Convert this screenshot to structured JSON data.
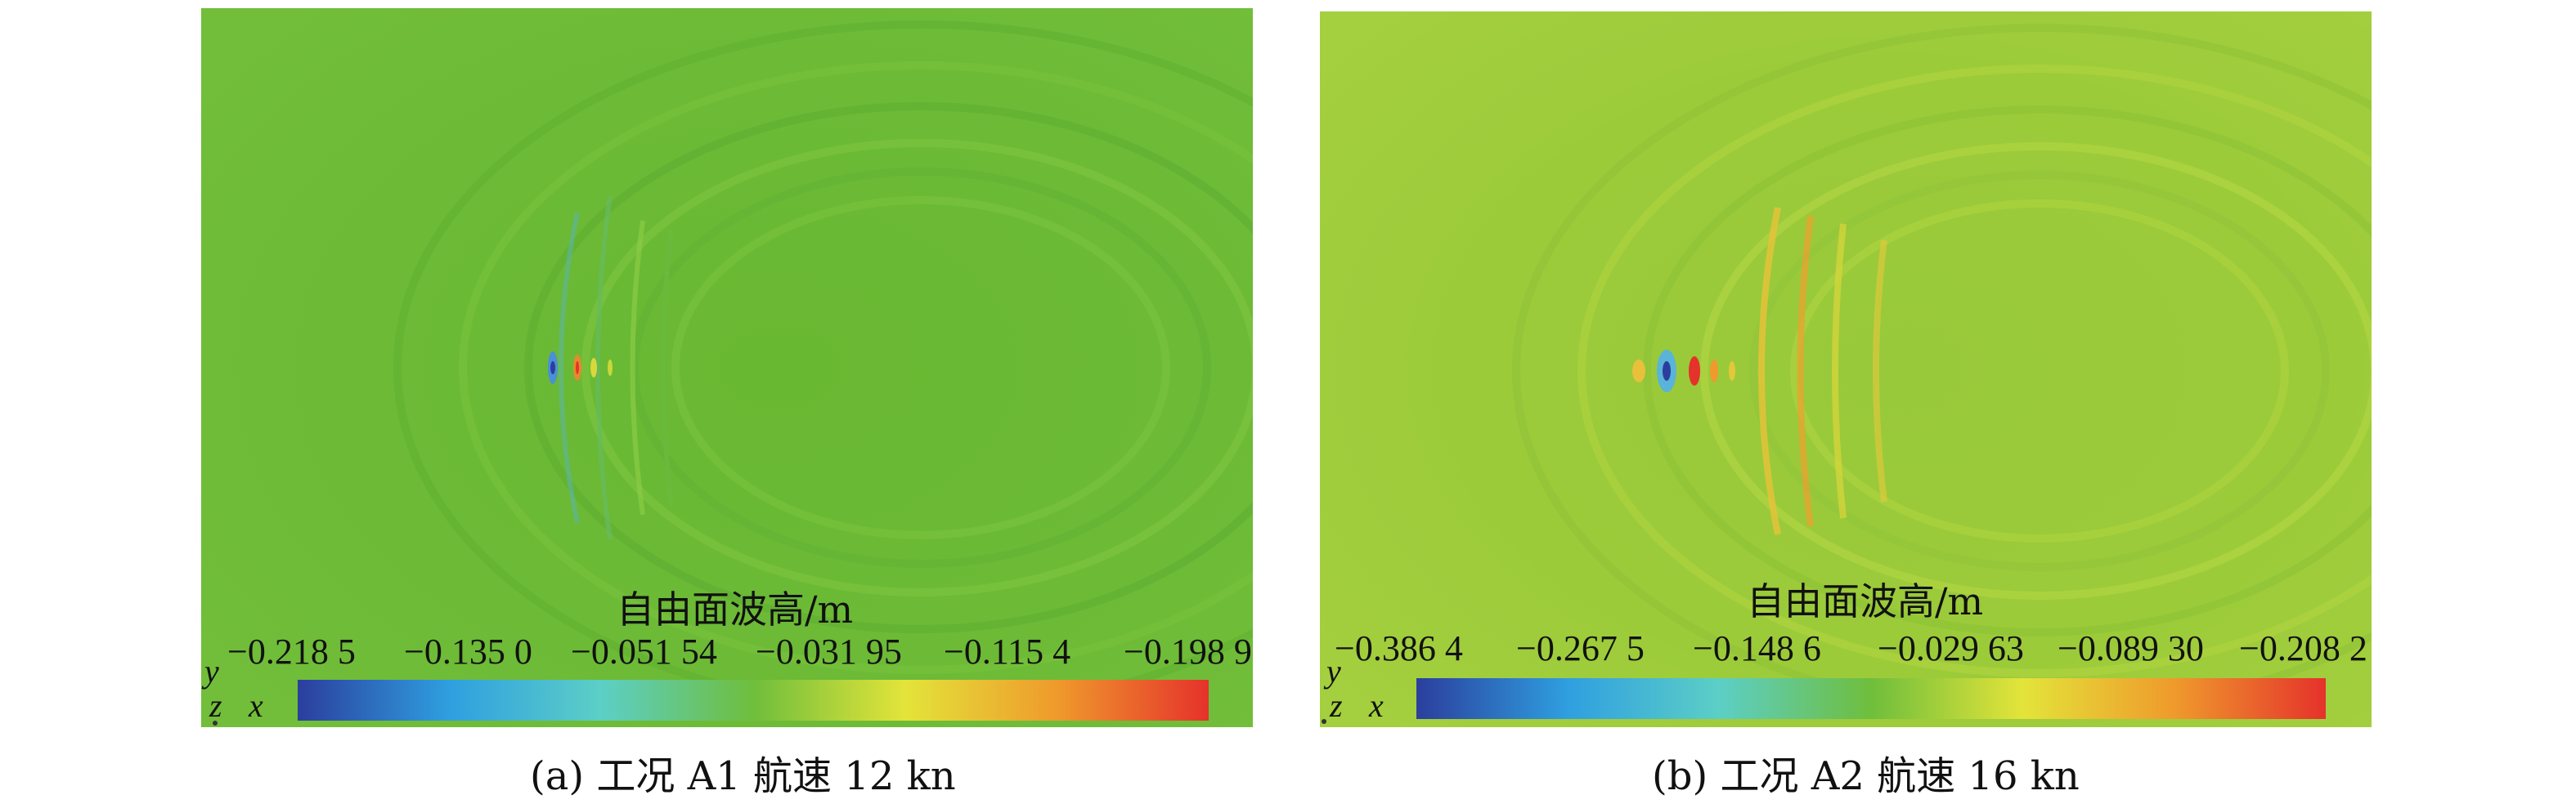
{
  "panels": [
    {
      "colorbar_title": "自由面波高/m",
      "colorbar_ticks": [
        "−0.218 5",
        "−0.135 0",
        "−0.051 54",
        "−0.031 95",
        "−0.115 4",
        "−0.198 9"
      ],
      "axis_labels": {
        "y": "y",
        "z": "z",
        "x": "x"
      },
      "caption": "(a) 工况 A1 航速 12 kn",
      "background_color": "#6cba36"
    },
    {
      "colorbar_title": "自由面波高/m",
      "colorbar_ticks": [
        "−0.386 4",
        "−0.267 5",
        "−0.148 6",
        "−0.029 63",
        "−0.089 30",
        "−0.208 2"
      ],
      "axis_labels": {
        "y": "y",
        "z": "z",
        "x": "x"
      },
      "caption": "(b) 工况 A2 航速 16 kn",
      "background_color": "#9ccb3a"
    }
  ],
  "colorbar_colors": [
    "#2b3e9e",
    "#2f9fe0",
    "#5ccfc6",
    "#6fbe3c",
    "#e3e43a",
    "#ef9a2c",
    "#e5322b"
  ]
}
